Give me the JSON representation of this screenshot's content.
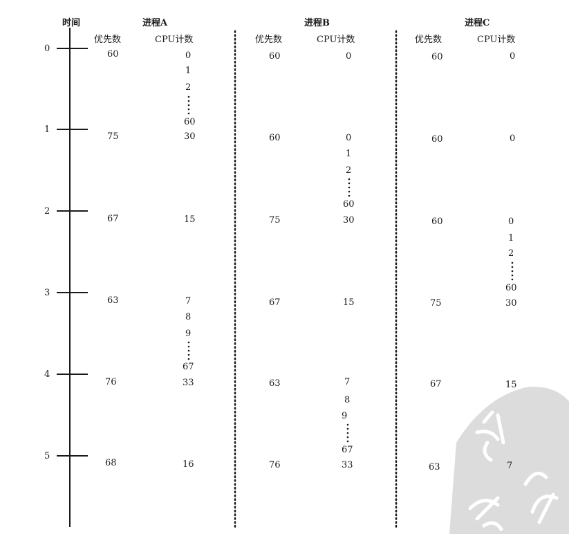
{
  "time_header": "时间",
  "processes": [
    {
      "name": "进程A",
      "priority_header": "优先数",
      "cpu_header": "CPU计数",
      "priorities": [
        "60",
        "75",
        "67",
        "63",
        "76",
        "68"
      ],
      "cpu_runs": [
        {
          "start": "0",
          "seq": [
            "1",
            "2"
          ],
          "end": "60"
        },
        {
          "value": "30"
        },
        {
          "value": "15"
        },
        {
          "start": "7",
          "seq": [
            "8",
            "9"
          ],
          "end": "67"
        },
        {
          "value": "33"
        },
        {
          "value": "16"
        }
      ]
    },
    {
      "name": "进程B",
      "priority_header": "优先数",
      "cpu_header": "CPU计数",
      "priorities": [
        "60",
        "60",
        "75",
        "67",
        "63",
        "76"
      ],
      "cpu_runs": [
        {
          "value": "0"
        },
        {
          "start": "0",
          "seq": [
            "1",
            "2"
          ],
          "end": "60"
        },
        {
          "value": "30"
        },
        {
          "value": "15"
        },
        {
          "start": "7",
          "seq": [
            "8",
            "9"
          ],
          "end": "67"
        },
        {
          "value": "33"
        }
      ]
    },
    {
      "name": "进程C",
      "priority_header": "优先数",
      "cpu_header": "CPU计数",
      "priorities": [
        "60",
        "60",
        "60",
        "75",
        "67",
        "63"
      ],
      "cpu_runs": [
        {
          "value": "0"
        },
        {
          "value": "0"
        },
        {
          "start": "0",
          "seq": [
            "1",
            "2"
          ],
          "end": "60"
        },
        {
          "value": "30"
        },
        {
          "value": "15"
        },
        {
          "value": "7"
        }
      ]
    }
  ],
  "time_ticks": [
    "0",
    "1",
    "2",
    "3",
    "4",
    "5"
  ],
  "colors": {
    "ink": "#1a1a1a",
    "watermark": "#dcdcdc",
    "watermark_stroke": "#ffffff"
  }
}
